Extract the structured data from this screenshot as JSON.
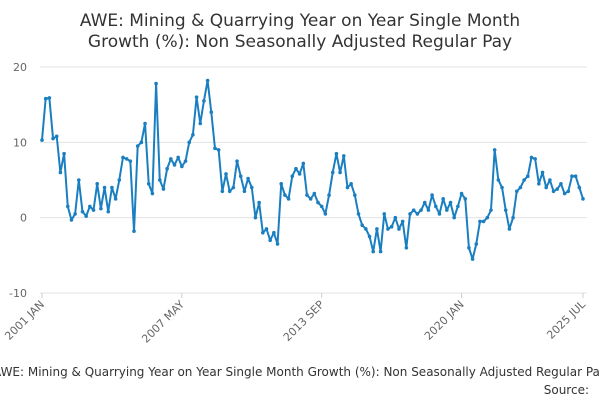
{
  "chart_data": {
    "type": "line",
    "title": [
      "AWE: Mining & Quarrying Year on Year Single Month",
      "Growth (%): Non Seasonally Adjusted Regular Pay"
    ],
    "footer_title": "AWE: Mining & Quarrying Year on Year Single Month Growth (%): Non Seasonally Adjusted Regular Pay",
    "source": "Source:",
    "color": "#1a7fc1",
    "grid": true,
    "ylim": [
      -10,
      20
    ],
    "yticks": [
      -10,
      0,
      10,
      20
    ],
    "xlim": [
      "2001-01",
      "2025-07"
    ],
    "xticks": [
      {
        "value": "2001-01",
        "label": "2001 JAN"
      },
      {
        "value": "2007-05",
        "label": "2007 MAY"
      },
      {
        "value": "2013-09",
        "label": "2013 SEP"
      },
      {
        "value": "2020-01",
        "label": "2020 JAN"
      },
      {
        "value": "2025-07",
        "label": "2025 JUL"
      }
    ],
    "x": [
      "2001-01",
      "2001-03",
      "2001-05",
      "2001-07",
      "2001-09",
      "2001-11",
      "2002-01",
      "2002-03",
      "2002-05",
      "2002-07",
      "2002-09",
      "2002-11",
      "2003-01",
      "2003-03",
      "2003-05",
      "2003-07",
      "2003-09",
      "2003-11",
      "2004-01",
      "2004-03",
      "2004-05",
      "2004-07",
      "2004-09",
      "2004-11",
      "2005-01",
      "2005-03",
      "2005-05",
      "2005-07",
      "2005-09",
      "2005-11",
      "2006-01",
      "2006-03",
      "2006-05",
      "2006-07",
      "2006-09",
      "2006-11",
      "2007-01",
      "2007-03",
      "2007-05",
      "2007-07",
      "2007-09",
      "2007-11",
      "2008-01",
      "2008-03",
      "2008-05",
      "2008-07",
      "2008-09",
      "2008-11",
      "2009-01",
      "2009-03",
      "2009-05",
      "2009-07",
      "2009-09",
      "2009-11",
      "2010-01",
      "2010-03",
      "2010-05",
      "2010-07",
      "2010-09",
      "2010-11",
      "2011-01",
      "2011-03",
      "2011-05",
      "2011-07",
      "2011-09",
      "2011-11",
      "2012-01",
      "2012-03",
      "2012-05",
      "2012-07",
      "2012-09",
      "2012-11",
      "2013-01",
      "2013-03",
      "2013-05",
      "2013-07",
      "2013-09",
      "2013-11",
      "2014-01",
      "2014-03",
      "2014-05",
      "2014-07",
      "2014-09",
      "2014-11",
      "2015-01",
      "2015-03",
      "2015-05",
      "2015-07",
      "2015-09",
      "2015-11",
      "2016-01",
      "2016-03",
      "2016-05",
      "2016-07",
      "2016-09",
      "2016-11",
      "2017-01",
      "2017-03",
      "2017-05",
      "2017-07",
      "2017-09",
      "2017-11",
      "2018-01",
      "2018-03",
      "2018-05",
      "2018-07",
      "2018-09",
      "2018-11",
      "2019-01",
      "2019-03",
      "2019-05",
      "2019-07",
      "2019-09",
      "2019-11",
      "2020-01",
      "2020-03",
      "2020-05",
      "2020-07",
      "2020-09",
      "2020-11",
      "2021-01",
      "2021-03",
      "2021-05",
      "2021-07",
      "2021-09",
      "2021-11",
      "2022-01",
      "2022-03",
      "2022-05",
      "2022-07",
      "2022-09",
      "2022-11",
      "2023-01",
      "2023-03",
      "2023-05",
      "2023-07",
      "2023-09",
      "2023-11",
      "2024-01",
      "2024-03",
      "2024-05",
      "2024-07",
      "2024-09",
      "2024-11",
      "2025-01",
      "2025-03",
      "2025-05",
      "2025-07"
    ],
    "values": [
      10.3,
      15.8,
      15.9,
      10.5,
      10.8,
      6,
      8.5,
      1.5,
      -0.3,
      0.5,
      5,
      0.8,
      0.2,
      1.5,
      1,
      4.5,
      1.2,
      4,
      0.8,
      4,
      2.5,
      5,
      8,
      7.8,
      7.5,
      -1.8,
      9.5,
      10,
      12.5,
      4.5,
      3.2,
      17.8,
      5,
      3.8,
      6.5,
      7.8,
      7,
      8,
      6.8,
      7.5,
      10,
      11,
      16,
      12.5,
      15.5,
      18.2,
      14,
      9.2,
      9,
      3.5,
      5.8,
      3.5,
      4,
      7.5,
      5.5,
      3.5,
      5.2,
      4,
      0,
      2,
      -2,
      -1.5,
      -3,
      -2,
      -3.5,
      4.5,
      3,
      2.5,
      5.5,
      6.5,
      5.8,
      7.2,
      3,
      2.5,
      3.2,
      2,
      1.5,
      0.5,
      3,
      6,
      8.5,
      6,
      8.2,
      4,
      4.5,
      3,
      0.5,
      -1,
      -1.5,
      -2.5,
      -4.5,
      -1.5,
      -4.5,
      0.5,
      -1.5,
      -1.2,
      0,
      -1.5,
      -0.5,
      -4,
      0.5,
      1,
      0.5,
      1,
      2,
      1,
      3,
      1.5,
      0.5,
      2.5,
      1,
      2,
      0,
      1.5,
      3.2,
      2.5,
      -4,
      -5.5,
      -3.5,
      -0.5,
      -0.5,
      0,
      1,
      9,
      5,
      4,
      1,
      -1.5,
      0,
      3.5,
      4,
      5,
      5.5,
      8,
      7.8,
      4.5,
      6,
      4,
      5,
      3.5,
      3.8,
      4.5,
      3.2,
      3.5,
      5.5,
      5.5,
      4,
      2.5
    ]
  }
}
